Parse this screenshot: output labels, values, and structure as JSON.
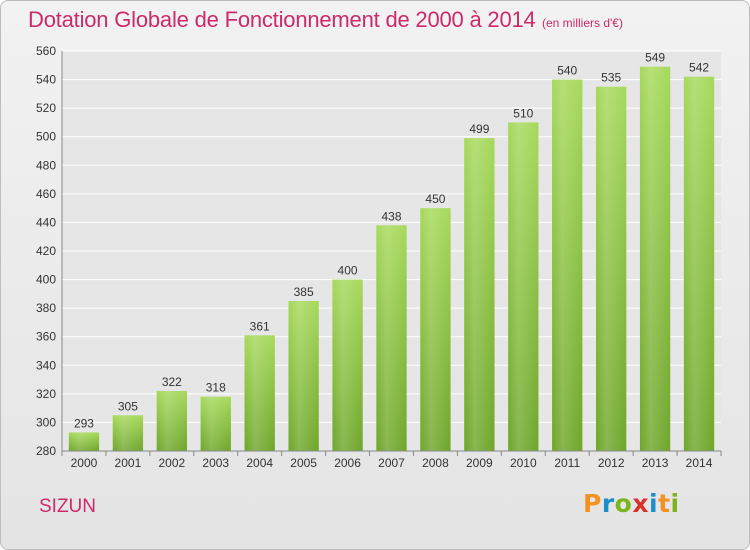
{
  "header": {
    "title": "Dotation Globale de Fonctionnement de 2000 à 2014",
    "subtitle": "(en milliers d'€)"
  },
  "footer": {
    "commune": "SIZUN",
    "logo_letters": [
      "P",
      "r",
      "o",
      "x",
      "i",
      "t",
      "i"
    ],
    "logo_colors": [
      "#f39223",
      "#1b8ec9",
      "#7ab51d",
      "#d8322b",
      "#1b8ec9",
      "#f39223",
      "#7ab51d"
    ]
  },
  "colors": {
    "title": "#cc2a6a",
    "bar_light": "#a6d95b",
    "bar_dark": "#6ea62a",
    "grid": "#ffffff"
  },
  "chart_data": {
    "type": "bar",
    "title": "Dotation Globale de Fonctionnement de 2000 à 2014",
    "subtitle": "(en milliers d'€)",
    "categories": [
      "2000",
      "2001",
      "2002",
      "2003",
      "2004",
      "2005",
      "2006",
      "2007",
      "2008",
      "2009",
      "2010",
      "2011",
      "2012",
      "2013",
      "2014"
    ],
    "values": [
      293,
      305,
      322,
      318,
      361,
      385,
      400,
      438,
      450,
      499,
      510,
      540,
      535,
      549,
      542
    ],
    "ylim": [
      280,
      560
    ],
    "yticks": [
      280,
      300,
      320,
      340,
      360,
      380,
      400,
      420,
      440,
      460,
      480,
      500,
      520,
      540,
      560
    ],
    "grid": true,
    "data_labels": true
  }
}
